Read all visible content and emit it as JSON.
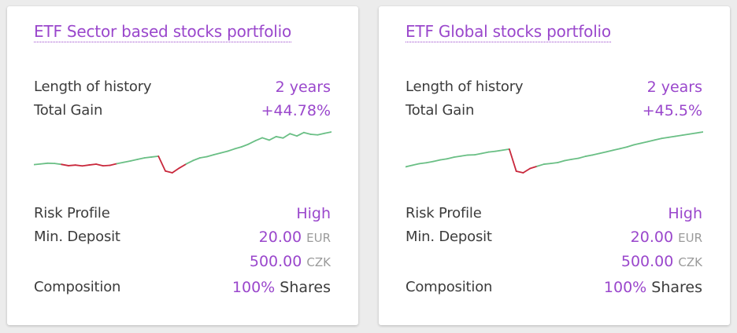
{
  "accent": "#9a47cc",
  "gain_color": "#6abf85",
  "loss_color": "#c9283c",
  "cards": [
    {
      "title": "ETF Sector based stocks portfolio",
      "history_label": "Length of history",
      "history_value": "2 years",
      "gain_label": "Total Gain",
      "gain_value": "+44.78%",
      "risk_label": "Risk Profile",
      "risk_value": "High",
      "deposit_label": "Min. Deposit",
      "deposit_eur_amount": "20.00",
      "deposit_eur_currency": "EUR",
      "deposit_czk_amount": "500.00",
      "deposit_czk_currency": "CZK",
      "composition_label": "Composition",
      "composition_percent": "100%",
      "composition_type": "Shares",
      "sparkline": [
        0.0,
        0.6,
        1.2,
        1.0,
        0.2,
        -0.9,
        -0.4,
        -1.1,
        -0.3,
        0.4,
        -1.0,
        -0.6,
        0.8,
        2.0,
        3.2,
        4.5,
        5.8,
        6.5,
        7.2,
        -5.5,
        -7.0,
        -3.0,
        0.5,
        3.5,
        5.8,
        6.8,
        8.5,
        10.0,
        11.5,
        13.5,
        15.2,
        17.5,
        20.5,
        23.0,
        21.0,
        24.0,
        22.8,
        26.5,
        24.5,
        27.5,
        26.0,
        25.5,
        26.8,
        28.0
      ]
    },
    {
      "title": "ETF Global stocks portfolio",
      "history_label": "Length of history",
      "history_value": "2 years",
      "gain_label": "Total Gain",
      "gain_value": "+45.5%",
      "risk_label": "Risk Profile",
      "risk_value": "High",
      "deposit_label": "Min. Deposit",
      "deposit_eur_amount": "20.00",
      "deposit_eur_currency": "EUR",
      "deposit_czk_amount": "500.00",
      "deposit_czk_currency": "CZK",
      "composition_label": "Composition",
      "composition_percent": "100%",
      "composition_type": "Shares",
      "sparkline": [
        0.0,
        1.5,
        3.0,
        3.8,
        5.0,
        6.5,
        7.5,
        9.0,
        10.0,
        11.0,
        11.2,
        12.5,
        13.8,
        14.5,
        15.5,
        16.5,
        -4.0,
        -5.5,
        -1.5,
        0.5,
        2.5,
        3.2,
        4.0,
        5.8,
        7.0,
        8.0,
        9.8,
        11.0,
        12.5,
        14.0,
        15.5,
        17.0,
        18.5,
        20.5,
        22.0,
        23.5,
        25.0,
        26.5,
        27.5,
        28.5,
        29.5,
        30.5,
        31.5,
        32.5
      ]
    }
  ]
}
